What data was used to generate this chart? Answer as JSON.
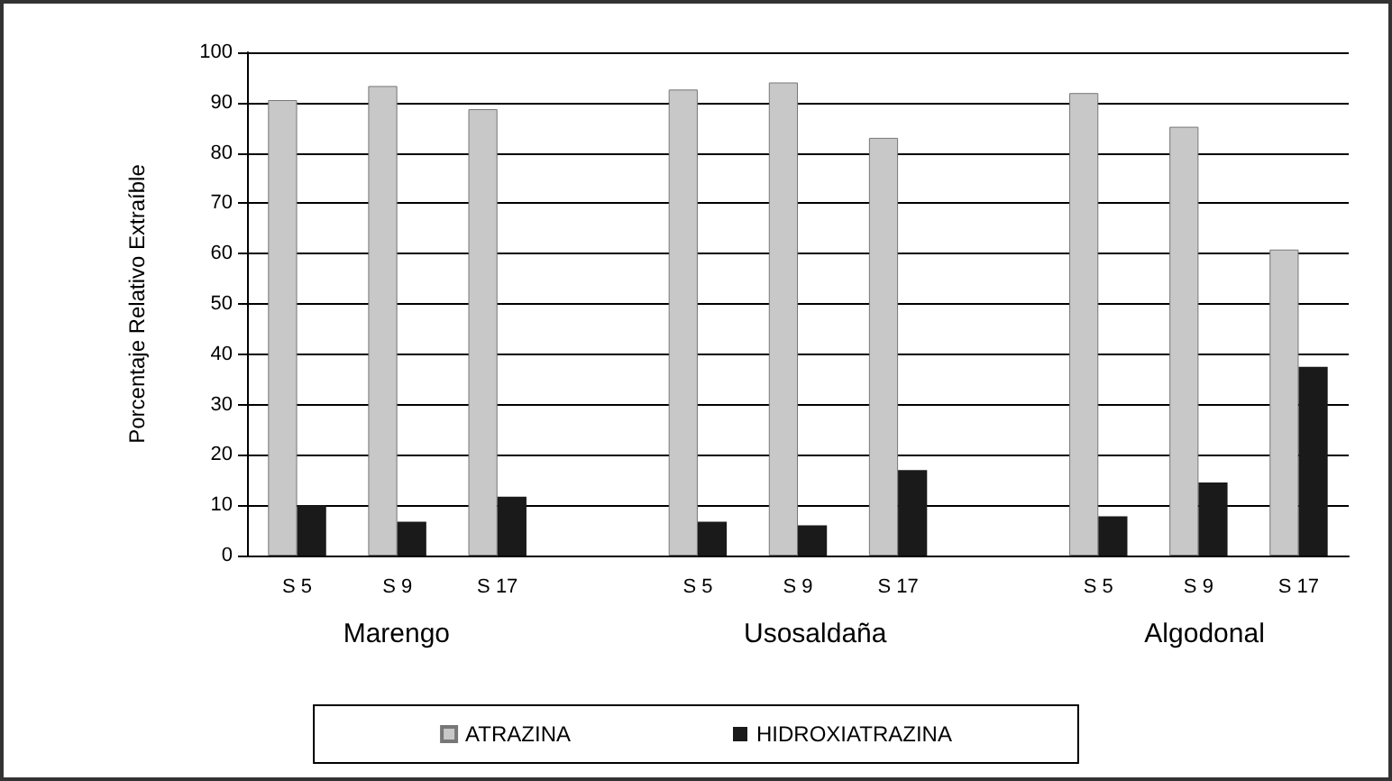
{
  "chart_data": {
    "type": "bar",
    "ylabel": "Porcentaje Relativo Extraíble",
    "categories": [
      "S 5",
      "S 9",
      "S 17",
      null,
      "S 5",
      "S 9",
      "S 17",
      null,
      "S 5",
      "S 9",
      "S 17"
    ],
    "series": [
      {
        "name": "ATRAZINA",
        "color": "#c8c8c8",
        "values": [
          90.5,
          93.3,
          88.7,
          null,
          92.6,
          94,
          83,
          null,
          91.9,
          85.2,
          60.8
        ]
      },
      {
        "name": "HIDROXIATRAZINA",
        "color": "#1a1a1a",
        "values": [
          10,
          6.7,
          11.7,
          null,
          6.7,
          6,
          17,
          null,
          7.8,
          14.5,
          37.5
        ]
      }
    ],
    "annotations": [
      "Marengo",
      "Usosaldaña",
      "Algodonal"
    ],
    "ylim": [
      0,
      100
    ],
    "yticks": [
      0,
      10,
      20,
      30,
      40,
      50,
      60,
      70,
      80,
      90,
      100
    ],
    "grid": "y",
    "legend": "bottom"
  }
}
